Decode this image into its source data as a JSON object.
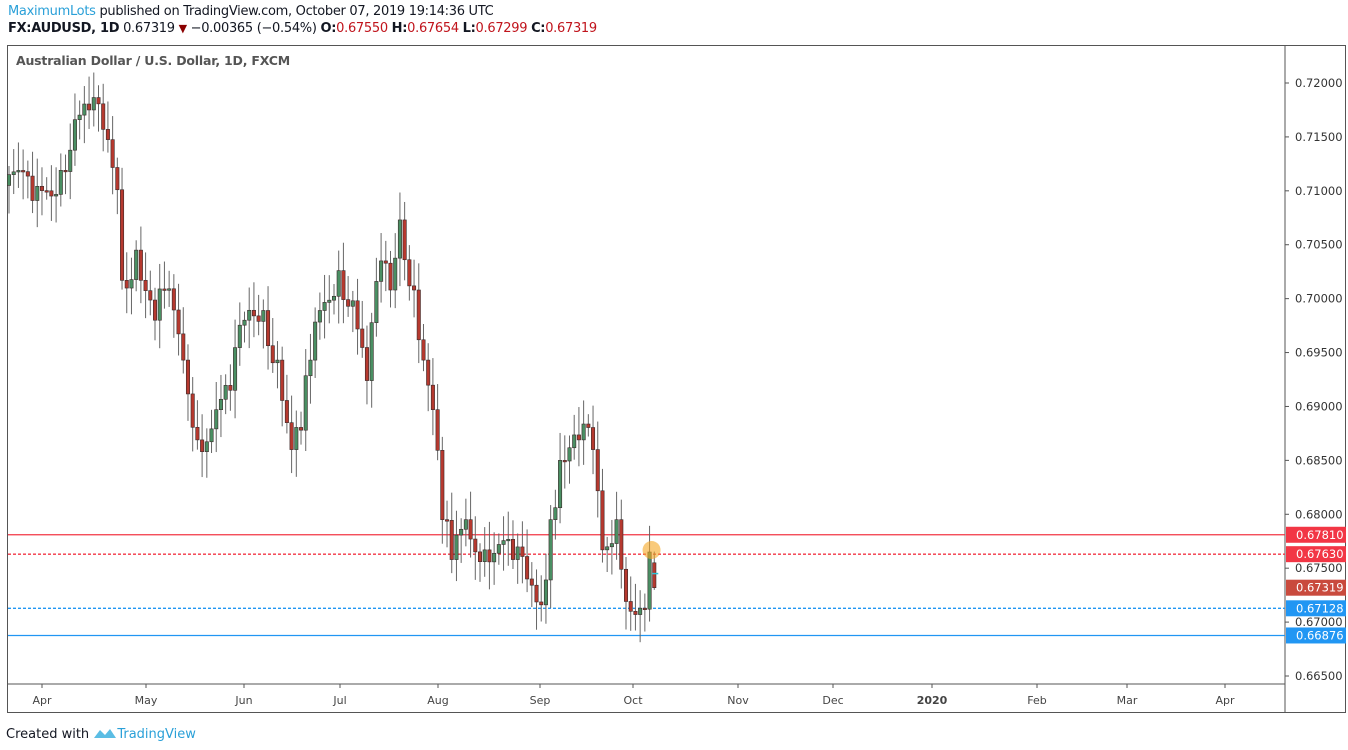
{
  "header": {
    "author": "MaximumLots",
    "published": "published on TradingView.com, October 07, 2019 19:14:36 UTC",
    "symbol": "FX:AUDUSD, 1D",
    "last": "0.67319",
    "change": "−0.00365 (−0.54%)",
    "o_label": "O:",
    "o": "0.67550",
    "h_label": "H:",
    "h": "0.67654",
    "l_label": "L:",
    "l": "0.67299",
    "c_label": "C:",
    "c": "0.67319"
  },
  "footer": {
    "created": "Created with",
    "brand": "TradingView"
  },
  "colors": {
    "up": "#4a8f63",
    "down": "#b6392f",
    "red_line": "#f23645",
    "blue_line": "#2196f3",
    "last_price": "#c94a3d"
  },
  "chart_data": {
    "type": "candlestick",
    "title": "Australian Dollar / U.S. Dollar, 1D, FXCM",
    "ylim": [
      0.6645,
      0.7215
    ],
    "y_ticks": [
      "0.72000",
      "0.71500",
      "0.71000",
      "0.70500",
      "0.70000",
      "0.69500",
      "0.69000",
      "0.68500",
      "0.68000",
      "0.67500",
      "0.67000",
      "0.66500"
    ],
    "x_ticks": [
      "Apr",
      "May",
      "Jun",
      "Jul",
      "Aug",
      "Sep",
      "Oct",
      "Nov",
      "Dec",
      "2020",
      "Feb",
      "Mar",
      "Apr"
    ],
    "close_waypoints": [
      [
        0,
        0.7115
      ],
      [
        5,
        0.7091
      ],
      [
        8,
        0.71
      ],
      [
        11,
        0.7119
      ],
      [
        14,
        0.7166
      ],
      [
        17,
        0.7175
      ],
      [
        20,
        0.7157
      ],
      [
        23,
        0.7101
      ],
      [
        24,
        0.7017
      ],
      [
        27,
        0.7045
      ],
      [
        31,
        0.698
      ],
      [
        33,
        0.7008
      ],
      [
        37,
        0.6943
      ],
      [
        40,
        0.6869
      ],
      [
        44,
        0.6897
      ],
      [
        47,
        0.6915
      ],
      [
        50,
        0.698
      ],
      [
        54,
        0.6989
      ],
      [
        57,
        0.6943
      ],
      [
        60,
        0.686
      ],
      [
        62,
        0.6878
      ],
      [
        64,
        0.6943
      ],
      [
        66,
        0.6989
      ],
      [
        70,
        0.7026
      ],
      [
        73,
        0.6998
      ],
      [
        76,
        0.6924
      ],
      [
        79,
        0.7035
      ],
      [
        81,
        0.7008
      ],
      [
        83,
        0.7073
      ],
      [
        86,
        0.7008
      ],
      [
        88,
        0.6943
      ],
      [
        90,
        0.6897
      ],
      [
        92,
        0.6795
      ],
      [
        94,
        0.6758
      ],
      [
        97,
        0.6795
      ],
      [
        101,
        0.6767
      ],
      [
        104,
        0.6772
      ],
      [
        107,
        0.6758
      ],
      [
        110,
        0.674
      ],
      [
        113,
        0.6716
      ],
      [
        115,
        0.6795
      ],
      [
        117,
        0.685
      ],
      [
        121,
        0.6869
      ],
      [
        124,
        0.686
      ],
      [
        126,
        0.6767
      ],
      [
        129,
        0.6795
      ],
      [
        130,
        0.6749
      ],
      [
        133,
        0.6707
      ],
      [
        135,
        0.6712
      ],
      [
        136,
        0.6765
      ],
      [
        137,
        0.67319
      ]
    ],
    "last_bar": {
      "open": 0.6755,
      "high": 0.67654,
      "low": 0.67299,
      "close": 0.67319
    },
    "horizontal_lines": [
      {
        "price": 0.6781,
        "label": "0.67810",
        "style": "solid",
        "color": "#f23645"
      },
      {
        "price": 0.6763,
        "label": "0.67630",
        "style": "dotted",
        "color": "#f23645"
      },
      {
        "price": 0.67128,
        "label": "0.67128",
        "style": "dotted",
        "color": "#2196f3"
      },
      {
        "price": 0.66876,
        "label": "0.66876",
        "style": "solid",
        "color": "#2196f3"
      }
    ],
    "last_price_label": "0.67319",
    "marker": {
      "price": 0.6765,
      "bar": 136
    }
  }
}
